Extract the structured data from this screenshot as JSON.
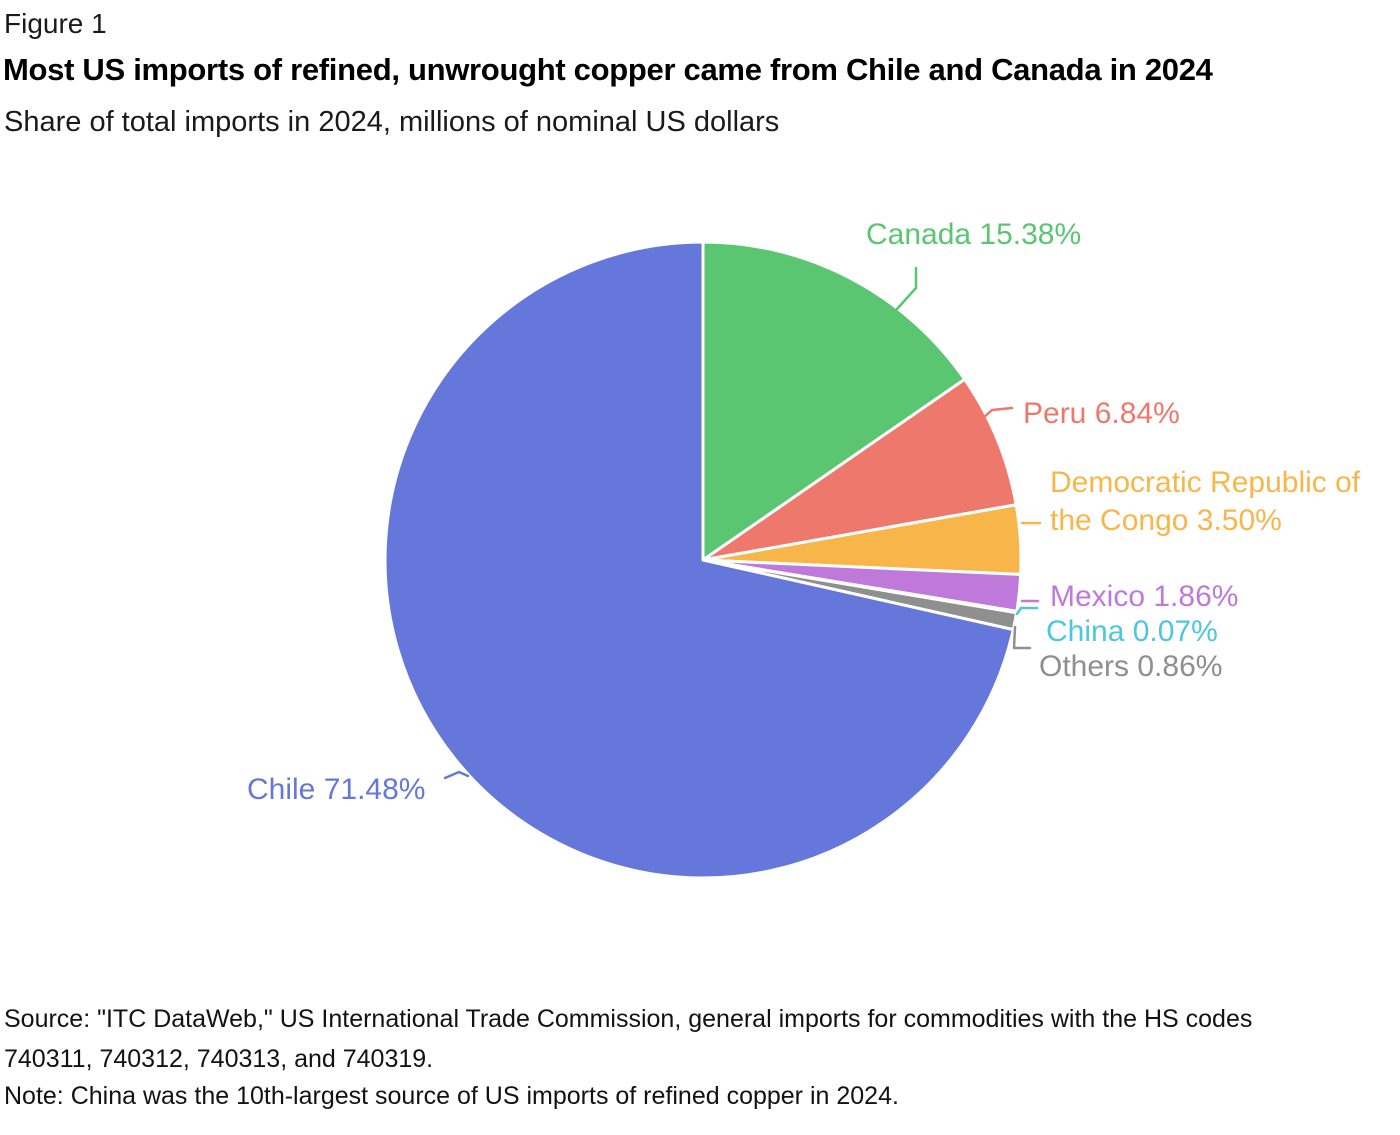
{
  "figure": {
    "eyebrow": "Figure 1",
    "title": "Most US imports of refined, unwrought copper came from Chile and Canada in 2024",
    "subtitle": "Share of total imports in 2024, millions of nominal US dollars"
  },
  "chart_data": {
    "type": "pie",
    "title": "Most US imports of refined, unwrought copper came from Chile and Canada in 2024",
    "subtitle": "Share of total imports in 2024, millions of nominal US dollars",
    "unit": "percent share of total 2024 US import value",
    "direction": "clockwise",
    "start_position": "12 o'clock",
    "slices": [
      {
        "label": "Canada",
        "value": 15.38,
        "display": "Canada 15.38%",
        "color": "#5AC672"
      },
      {
        "label": "Peru",
        "value": 6.84,
        "display": "Peru 6.84%",
        "color": "#EE786B"
      },
      {
        "label": "Democratic Republic of the Congo",
        "value": 3.5,
        "display": "Democratic Republic of\nthe Congo 3.50%",
        "color": "#F8B64A"
      },
      {
        "label": "Mexico",
        "value": 1.86,
        "display": "Mexico 1.86%",
        "color": "#BE79DB"
      },
      {
        "label": "China",
        "value": 0.07,
        "display": "China 0.07%",
        "color": "#4DC6DE"
      },
      {
        "label": "Others",
        "value": 0.86,
        "display": "Others 0.86%",
        "color": "#8F8F8F"
      },
      {
        "label": "Chile",
        "value": 71.48,
        "display": "Chile 71.48%",
        "color": "#6677DB"
      }
    ]
  },
  "footer": {
    "source": "Source: \"ITC DataWeb,\" US International Trade Commission, general imports for commodities with the HS codes\n740311, 740312, 740313, and 740319.",
    "note": "Note: China was the 10th-largest source of US imports of refined copper in 2024."
  }
}
